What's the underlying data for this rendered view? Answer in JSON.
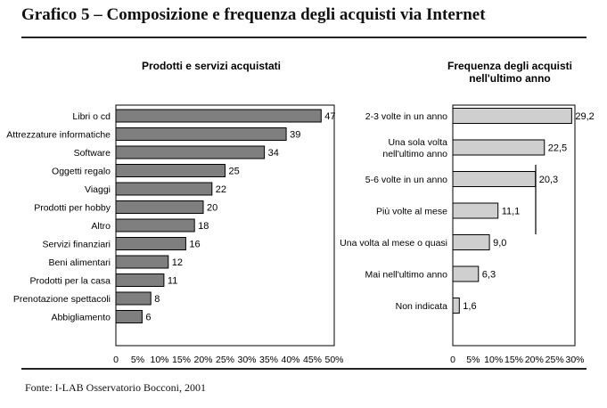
{
  "page": {
    "title": "Grafico 5 – Composizione e frequenza degli acquisti via Internet",
    "source": "Fonte: I-LAB Osservatorio Bocconi, 2001"
  },
  "chart_data": [
    {
      "type": "bar",
      "orientation": "horizontal",
      "title": "Prodotti e servizi acquistati",
      "categories": [
        "Libri o cd",
        "Attrezzature informatiche",
        "Software",
        "Oggetti regalo",
        "Viaggi",
        "Prodotti per hobby",
        "Altro",
        "Servizi finanziari",
        "Beni alimentari",
        "Prodotti per la casa",
        "Prenotazione spettacoli",
        "Abbigliamento"
      ],
      "values": [
        47,
        39,
        34,
        25,
        22,
        20,
        18,
        16,
        12,
        11,
        8,
        6
      ],
      "value_labels": [
        "47",
        "39",
        "34",
        "25",
        "22",
        "20",
        "18",
        "16",
        "12",
        "11",
        "8",
        "6"
      ],
      "xlim": [
        0,
        50
      ],
      "xticks": [
        "0",
        "5%",
        "10%",
        "15%",
        "20%",
        "25%",
        "30%",
        "35%",
        "40%",
        "45%",
        "50%"
      ],
      "bar_color": "#7f7f7f"
    },
    {
      "type": "bar",
      "orientation": "horizontal",
      "title_lines": [
        "Frequenza degli acquisti",
        "nell'ultimo anno"
      ],
      "categories": [
        [
          "2-3 volte in un anno"
        ],
        [
          "Una sola volta",
          "nell'ultimo anno"
        ],
        [
          "5-6 volte in un anno"
        ],
        [
          "Più volte al mese"
        ],
        [
          "Una volta al mese o quasi"
        ],
        [
          "Mai nell'ultimo anno"
        ],
        [
          "Non indicata"
        ]
      ],
      "values": [
        29.2,
        22.5,
        20.3,
        11.1,
        9.0,
        6.3,
        1.6
      ],
      "value_labels": [
        "29,2",
        "22,5",
        "20,3",
        "11,1",
        "9,0",
        "6,3",
        "1,6"
      ],
      "xlim": [
        0,
        30
      ],
      "xticks": [
        "0",
        "5%",
        "10%",
        "15%",
        "20%",
        "25%",
        "30%"
      ],
      "bar_color": "#cfcfcf"
    }
  ]
}
